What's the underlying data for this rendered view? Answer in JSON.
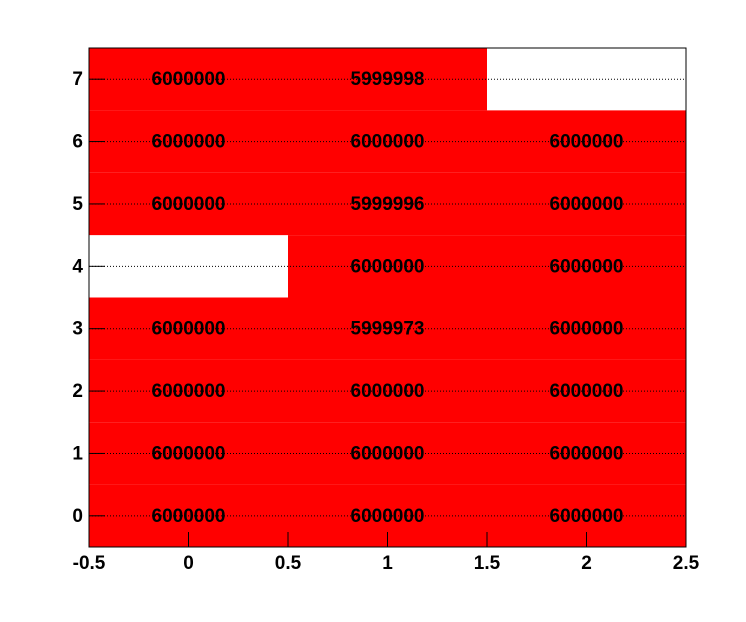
{
  "chart_data": {
    "type": "heatmap",
    "x": [
      0,
      1,
      2
    ],
    "y": [
      0,
      1,
      2,
      3,
      4,
      5,
      6,
      7
    ],
    "values": [
      [
        6000000,
        6000000,
        6000000
      ],
      [
        6000000,
        6000000,
        6000000
      ],
      [
        6000000,
        6000000,
        6000000
      ],
      [
        6000000,
        5999973,
        6000000
      ],
      [
        null,
        6000000,
        6000000
      ],
      [
        6000000,
        5999996,
        6000000
      ],
      [
        6000000,
        6000000,
        6000000
      ],
      [
        6000000,
        5999998,
        null
      ]
    ],
    "color": "#ff0000",
    "xlim": [
      -0.5,
      2.5
    ],
    "ylim": [
      -0.5,
      7.5
    ],
    "xticks": [
      -0.5,
      0,
      0.5,
      1,
      1.5,
      2,
      2.5
    ],
    "yticks": [
      0,
      1,
      2,
      3,
      4,
      5,
      6,
      7
    ],
    "grid": "y"
  }
}
